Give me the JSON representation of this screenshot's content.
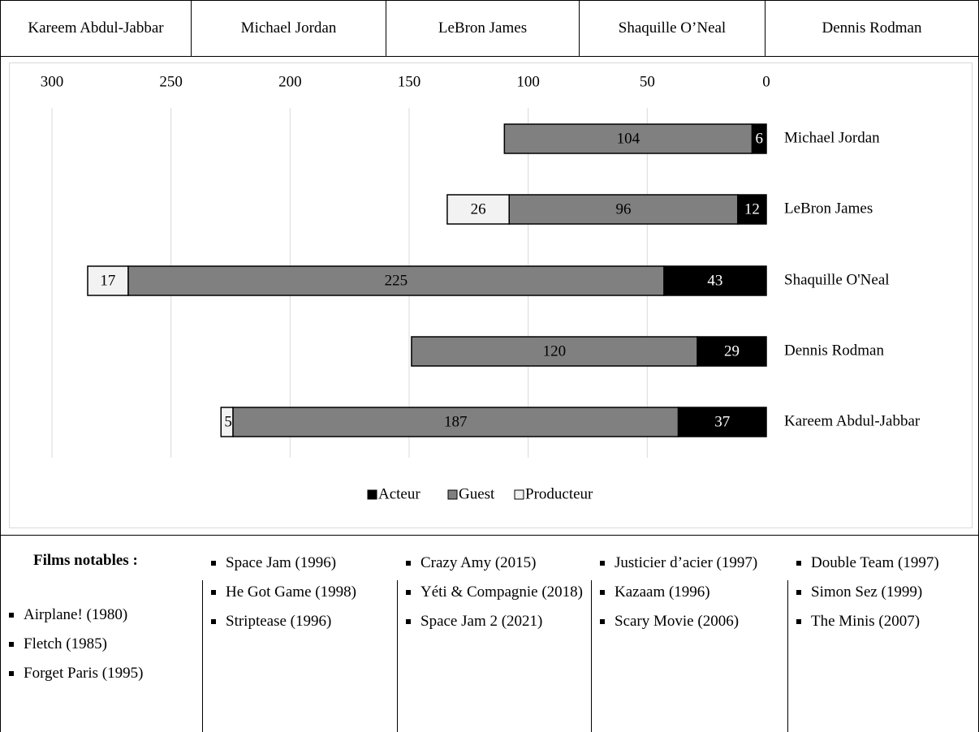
{
  "header": {
    "players": [
      "Kareem Abdul-Jabbar",
      "Michael Jordan",
      "LeBron James",
      "Shaquille O’Neal",
      "Dennis Rodman"
    ]
  },
  "chart_data": {
    "type": "bar",
    "orientation": "horizontal",
    "stacked": true,
    "x_reversed": true,
    "xlim": [
      0,
      300
    ],
    "x_ticks": [
      300,
      250,
      200,
      150,
      100,
      50,
      0
    ],
    "grid": true,
    "legend_position": "bottom",
    "categories": [
      "Michael Jordan",
      "LeBron James",
      "Shaquille O'Neal",
      "Dennis Rodman",
      "Kareem Abdul-Jabbar"
    ],
    "series": [
      {
        "name": "Acteur",
        "color": "#000000",
        "values": [
          6,
          12,
          43,
          29,
          37
        ]
      },
      {
        "name": "Guest",
        "color": "#808080",
        "values": [
          104,
          96,
          225,
          120,
          187
        ]
      },
      {
        "name": "Producteur",
        "color": "#f2f2f2",
        "values": [
          0,
          26,
          17,
          0,
          5
        ]
      }
    ]
  },
  "films": {
    "title": "Films notables :",
    "columns": [
      [
        "Airplane! (1980)",
        "Fletch (1985)",
        "Forget Paris (1995)"
      ],
      [
        "Space Jam (1996)",
        "He Got Game (1998)",
        "Striptease (1996)"
      ],
      [
        "Crazy Amy (2015)",
        "Yéti & Compagnie (2018)",
        "Space Jam 2 (2021)"
      ],
      [
        "Justicier d’acier (1997)",
        "Kazaam (1996)",
        "Scary Movie (2006)"
      ],
      [
        "Double Team (1997)",
        "Simon Sez (1999)",
        "The Minis (2007)"
      ]
    ]
  }
}
